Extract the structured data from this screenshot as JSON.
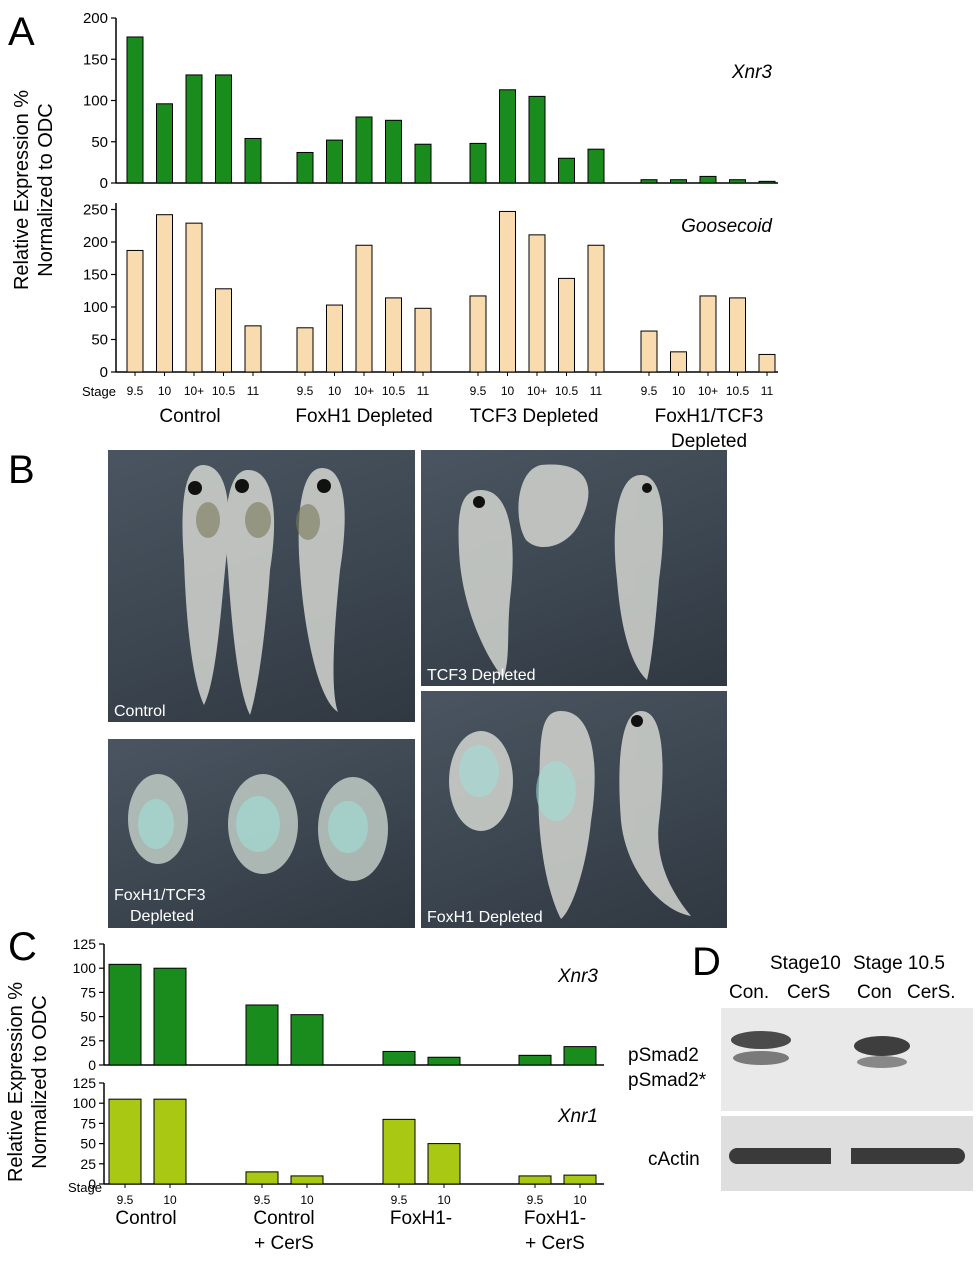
{
  "panels": {
    "A": "A",
    "B": "B",
    "C": "C",
    "D": "D"
  },
  "panel_a": {
    "ylabel_line1": "Relative Expression %",
    "ylabel_line2": "Normalized to ODC",
    "stage_label": "Stage",
    "stages": [
      "9.5",
      "10",
      "10+",
      "10.5",
      "11"
    ],
    "groups": [
      "Control",
      "FoxH1  Depleted",
      "TCF3 Depleted",
      "FoxH1/TCF3",
      "Depleted"
    ]
  },
  "panel_b": {
    "labels": [
      "Control",
      "TCF3 Depleted",
      "FoxH1/TCF3",
      "Depleted",
      "FoxH1 Depleted"
    ]
  },
  "panel_c": {
    "ylabel_line1": "Relative Expression %",
    "ylabel_line2": "Normalized to ODC",
    "stage_label": "Stage",
    "stages": [
      "9.5",
      "10"
    ],
    "groups": [
      [
        "Control"
      ],
      [
        "Control",
        "+ CerS"
      ],
      [
        "FoxH1-"
      ],
      [
        "FoxH1-",
        "+ CerS"
      ]
    ]
  },
  "panel_d": {
    "headers": [
      "Stage10",
      "Stage 10.5"
    ],
    "lanes": [
      "Con.",
      "CerS",
      "Con",
      "CerS."
    ],
    "rows": [
      "pSmad2",
      "pSmad2*",
      "cActin"
    ]
  },
  "colors": {
    "dark_green": "#1a8c1e",
    "beige": "#f8dcb0",
    "light_green": "#a8c814"
  },
  "chart_data": [
    {
      "type": "bar",
      "name": "Xnr3",
      "title": "Xnr3",
      "categories": [
        "9.5",
        "10",
        "10+",
        "10.5",
        "11"
      ],
      "groups": [
        "Control",
        "FoxH1  Depleted",
        "TCF3 Depleted",
        "FoxH1/TCF3 Depleted"
      ],
      "values": [
        [
          177,
          96,
          131,
          131,
          54
        ],
        [
          37,
          52,
          80,
          76,
          47
        ],
        [
          48,
          113,
          105,
          30,
          41
        ],
        [
          4,
          4,
          8,
          4,
          2
        ]
      ],
      "yticks": [
        0,
        50,
        100,
        150,
        200
      ],
      "ylim": [
        0,
        200
      ],
      "color": "#1a8c1e"
    },
    {
      "type": "bar",
      "name": "Goosecoid",
      "title": "Goosecoid",
      "categories": [
        "9.5",
        "10",
        "10+",
        "10.5",
        "11"
      ],
      "groups": [
        "Control",
        "FoxH1  Depleted",
        "TCF3 Depleted",
        "FoxH1/TCF3 Depleted"
      ],
      "values": [
        [
          187,
          242,
          229,
          128,
          71
        ],
        [
          68,
          103,
          195,
          114,
          98
        ],
        [
          117,
          247,
          211,
          144,
          195
        ],
        [
          63,
          31,
          117,
          114,
          27
        ]
      ],
      "yticks": [
        0,
        50,
        100,
        150,
        200,
        250
      ],
      "ylim": [
        0,
        260
      ],
      "color": "#f8dcb0"
    },
    {
      "type": "bar",
      "name": "Xnr3",
      "title": "Xnr3",
      "categories": [
        "9.5",
        "10"
      ],
      "groups": [
        "Control",
        "Control + CerS",
        "FoxH1-",
        "FoxH1- + CerS"
      ],
      "values": [
        [
          104,
          100
        ],
        [
          62,
          52
        ],
        [
          14,
          8
        ],
        [
          10,
          19
        ]
      ],
      "yticks": [
        0,
        25,
        50,
        75,
        100,
        125
      ],
      "ylim": [
        0,
        125
      ],
      "color": "#1a8c1e"
    },
    {
      "type": "bar",
      "name": "Xnr1",
      "title": "Xnr1",
      "categories": [
        "9.5",
        "10"
      ],
      "groups": [
        "Control",
        "Control + CerS",
        "FoxH1-",
        "FoxH1- + CerS"
      ],
      "values": [
        [
          105,
          105
        ],
        [
          15,
          10
        ],
        [
          80,
          50
        ],
        [
          10,
          11
        ]
      ],
      "yticks": [
        0,
        25,
        50,
        75,
        100,
        125
      ],
      "ylim": [
        0,
        125
      ],
      "color": "#a8c814"
    }
  ]
}
